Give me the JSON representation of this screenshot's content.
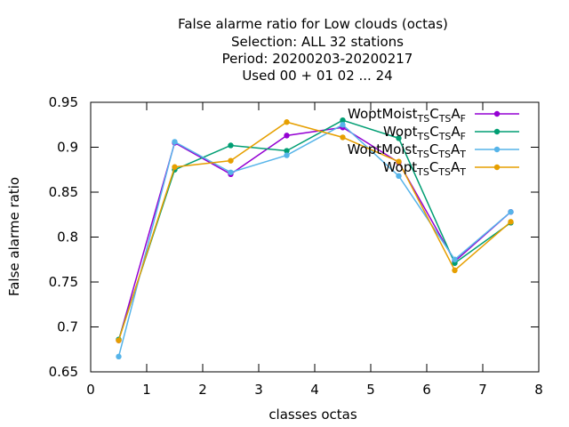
{
  "chart_data": {
    "type": "line",
    "title_lines": [
      "False alarme ratio  for Low clouds (octas)",
      "Selection: ALL     32 stations",
      "Period: 20200203-20200217",
      "Used  00 + 01 02 ... 24"
    ],
    "xlabel": "classes octas",
    "ylabel": "False alarme ratio",
    "xlim": [
      0,
      8
    ],
    "ylim": [
      0.65,
      0.95
    ],
    "xticks": [
      "0",
      "1",
      "2",
      "3",
      "4",
      "5",
      "6",
      "7",
      "8"
    ],
    "yticks": [
      "0.65",
      "0.7",
      "0.75",
      "0.8",
      "0.85",
      "0.9",
      "0.95"
    ],
    "grid": false,
    "legend_position": "top-right",
    "x": [
      0.5,
      1.5,
      2.5,
      3.5,
      4.5,
      5.5,
      6.5,
      7.5
    ],
    "series": [
      {
        "name": "WoptMoist TS C TS A F",
        "legend": [
          [
            "WoptMoist",
            ""
          ],
          [
            "TS",
            "sub"
          ],
          [
            "C",
            ""
          ],
          [
            "TS",
            "sub"
          ],
          [
            "A",
            ""
          ],
          [
            "F",
            "sub"
          ]
        ],
        "color": "#9400d3",
        "values": [
          0.685,
          0.905,
          0.87,
          0.913,
          0.922,
          0.883,
          0.773,
          0.828
        ]
      },
      {
        "name": "Wopt TS C TS A F",
        "legend": [
          [
            "Wopt",
            ""
          ],
          [
            "TS",
            "sub"
          ],
          [
            "C",
            ""
          ],
          [
            "TS",
            "sub"
          ],
          [
            "A",
            ""
          ],
          [
            "F",
            "sub"
          ]
        ],
        "color": "#009e73",
        "values": [
          0.686,
          0.875,
          0.902,
          0.896,
          0.93,
          0.91,
          0.771,
          0.816
        ]
      },
      {
        "name": "WoptMoist TS C TS A T",
        "legend": [
          [
            "WoptMoist",
            ""
          ],
          [
            "TS",
            "sub"
          ],
          [
            "C",
            ""
          ],
          [
            "TS",
            "sub"
          ],
          [
            "A",
            ""
          ],
          [
            "T",
            "sub"
          ]
        ],
        "color": "#56b4e9",
        "values": [
          0.667,
          0.906,
          0.872,
          0.891,
          0.925,
          0.868,
          0.775,
          0.828
        ]
      },
      {
        "name": "Wopt TS C TS A T",
        "legend": [
          [
            "Wopt",
            ""
          ],
          [
            "TS",
            "sub"
          ],
          [
            "C",
            ""
          ],
          [
            "TS",
            "sub"
          ],
          [
            "A",
            ""
          ],
          [
            "T",
            "sub"
          ]
        ],
        "color": "#e69f00",
        "values": [
          0.685,
          0.878,
          0.885,
          0.928,
          0.911,
          0.884,
          0.763,
          0.817
        ]
      }
    ]
  }
}
